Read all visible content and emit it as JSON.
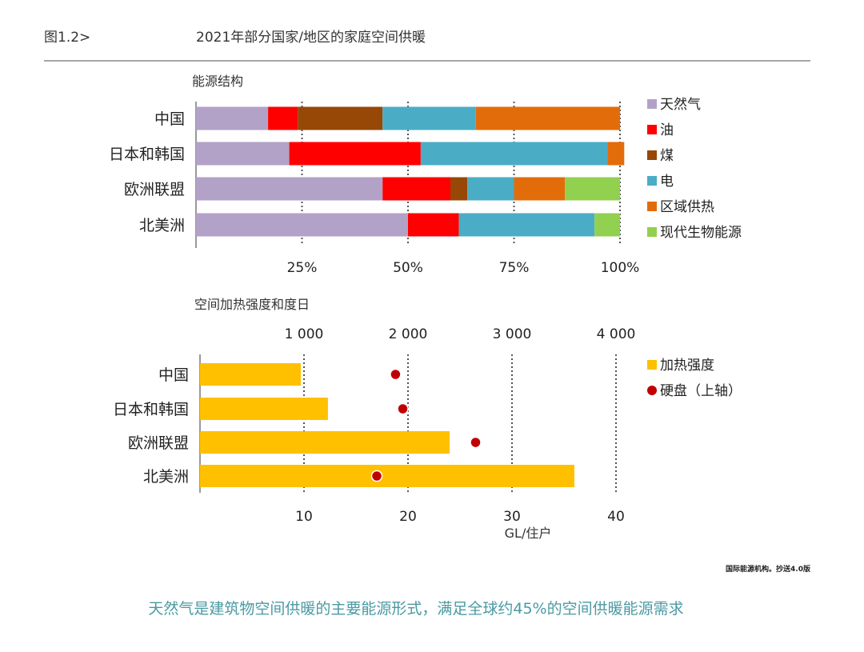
{
  "header": {
    "figure_label": "图1.2>",
    "title": "2021年部分国家/地区的家庭空间供暖"
  },
  "chart_data": [
    {
      "type": "bar",
      "stacked": true,
      "orientation": "horizontal",
      "title": "能源结构",
      "categories": [
        "中国",
        "日本和韩国",
        "欧洲联盟",
        "北美洲"
      ],
      "x_ticks": [
        "25%",
        "50%",
        "75%",
        "100%"
      ],
      "x_tick_values": [
        25,
        50,
        75,
        100
      ],
      "xlim": [
        0,
        100
      ],
      "grid": "vertical dotted",
      "legend_position": "right",
      "series": [
        {
          "name": "天然气",
          "color": "#b3a2c7",
          "values": [
            17,
            22,
            44,
            50
          ]
        },
        {
          "name": "油",
          "color": "#ff0000",
          "values": [
            7,
            31,
            16,
            12
          ]
        },
        {
          "name": "煤",
          "color": "#974706",
          "values": [
            20,
            0,
            4,
            0
          ]
        },
        {
          "name": "电",
          "color": "#4bacc6",
          "values": [
            22,
            44,
            11,
            32
          ]
        },
        {
          "name": "区域供热",
          "color": "#e36c0a",
          "values": [
            34,
            4,
            12,
            0
          ]
        },
        {
          "name": "现代生物能源",
          "color": "#92d050",
          "values": [
            0,
            0,
            13,
            6
          ]
        }
      ]
    },
    {
      "type": "bar",
      "orientation": "horizontal",
      "title": "空间加热强度和度日",
      "categories": [
        "中国",
        "日本和韩国",
        "欧洲联盟",
        "北美洲"
      ],
      "x_ticks_bottom": [
        "10",
        "20",
        "30",
        "40"
      ],
      "x_tick_values_bottom": [
        10,
        20,
        30,
        40
      ],
      "x_ticks_top": [
        "1 000",
        "2 000",
        "3 000",
        "4 000"
      ],
      "x_tick_values_top": [
        1000,
        2000,
        3000,
        4000
      ],
      "xlabel": "GL/住户",
      "xlim": [
        0,
        40
      ],
      "grid": "vertical dotted",
      "legend_position": "right",
      "series": [
        {
          "name": "加热强度",
          "type": "bar",
          "axis": "bottom",
          "color": "#ffc000",
          "values": [
            9.7,
            12.3,
            24.0,
            36.0
          ]
        },
        {
          "name": "硬盘（上轴）",
          "type": "scatter",
          "axis": "top",
          "color": "#c00000",
          "values": [
            1880,
            1950,
            2650,
            1700
          ]
        }
      ]
    }
  ],
  "footer": {
    "source": "国际能源机构。抄送4.0版",
    "caption": "天然气是建筑物空间供暖的主要能源形式，满足全球约45%的空间供暖能源需求"
  }
}
